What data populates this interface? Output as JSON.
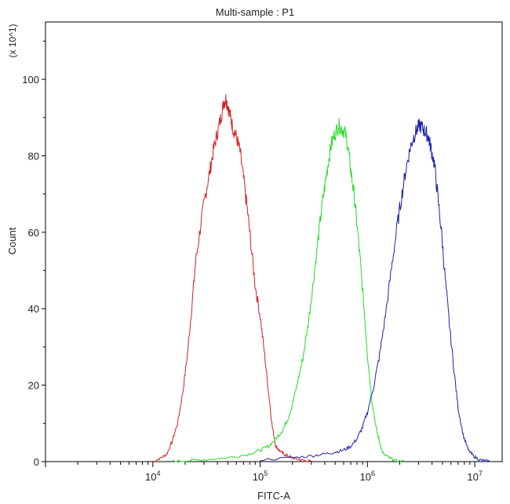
{
  "chart_data": {
    "type": "line",
    "title": "Multi-sample : P1",
    "xlabel": "FITC-A",
    "ylabel": "Count",
    "y_scale_note": "(x 10^1)",
    "x_scale": "log",
    "xlim": [
      1000,
      18000000
    ],
    "ylim": [
      0,
      115
    ],
    "grid": false,
    "legend": "none",
    "x_ticks": [
      {
        "value": 10000,
        "base": "10",
        "exp": "4"
      },
      {
        "value": 100000,
        "base": "10",
        "exp": "5"
      },
      {
        "value": 1000000,
        "base": "10",
        "exp": "6"
      },
      {
        "value": 10000000,
        "base": "10",
        "exp": "7"
      }
    ],
    "y_ticks": [
      0,
      20,
      40,
      60,
      80,
      100
    ],
    "series": [
      {
        "color": "#d42020",
        "x": [
          10000,
          12000,
          13500,
          15000,
          17000,
          19000,
          21000,
          23000,
          25000,
          28000,
          31000,
          34000,
          37000,
          40000,
          43000,
          46000,
          48000,
          50000,
          53000,
          56000,
          60000,
          65000,
          70000,
          76000,
          82000,
          90000,
          100000,
          110000,
          120000,
          130000,
          140000,
          150000,
          165000,
          180000,
          200000,
          230000,
          260000,
          300000
        ],
        "y": [
          0,
          1,
          2,
          5,
          10,
          18,
          28,
          40,
          52,
          62,
          70,
          76,
          82,
          86,
          90,
          94,
          95,
          93,
          90,
          87,
          85,
          81,
          74,
          66,
          57,
          46,
          38,
          28,
          18,
          9,
          4,
          3,
          2,
          1.5,
          1,
          0.5,
          0.3,
          0
        ]
      },
      {
        "color": "#22dd22",
        "x": [
          15000,
          20000,
          30000,
          50000,
          80000,
          100000,
          120000,
          140000,
          160000,
          180000,
          200000,
          220000,
          250000,
          280000,
          310000,
          340000,
          370000,
          400000,
          430000,
          460000,
          500000,
          540000,
          580000,
          620000,
          660000,
          700000,
          750000,
          800000,
          860000,
          930000,
          1000000,
          1100000,
          1200000,
          1300000,
          1400000,
          1600000,
          1800000,
          2200000
        ],
        "y": [
          0,
          0.2,
          0.5,
          1,
          2,
          3,
          4,
          6,
          8,
          11,
          15,
          20,
          27,
          36,
          46,
          56,
          65,
          72,
          78,
          83,
          86,
          88,
          87,
          86,
          82,
          76,
          70,
          62,
          52,
          40,
          28,
          16,
          9,
          5,
          2,
          1,
          0.3,
          0
        ]
      },
      {
        "color": "#1e22a8",
        "x": [
          100000,
          200000,
          300000,
          400000,
          500000,
          600000,
          700000,
          800000,
          900000,
          1000000,
          1150000,
          1300000,
          1500000,
          1700000,
          1900000,
          2100000,
          2300000,
          2500000,
          2700000,
          2900000,
          3100000,
          3300000,
          3500000,
          3700000,
          3900000,
          4200000,
          4500000,
          4900000,
          5300000,
          5800000,
          6400000,
          7000000,
          7800000,
          8700000,
          9700000,
          11000000,
          12500000,
          14000000
        ],
        "y": [
          0.5,
          1,
          1.5,
          2,
          2.5,
          3,
          4,
          6,
          9,
          13,
          20,
          28,
          40,
          52,
          62,
          70,
          77,
          82,
          85,
          87,
          88,
          87,
          86,
          85,
          82,
          78,
          70,
          60,
          48,
          36,
          24,
          14,
          7,
          3,
          1.5,
          0.5,
          0.2,
          0
        ]
      }
    ]
  }
}
